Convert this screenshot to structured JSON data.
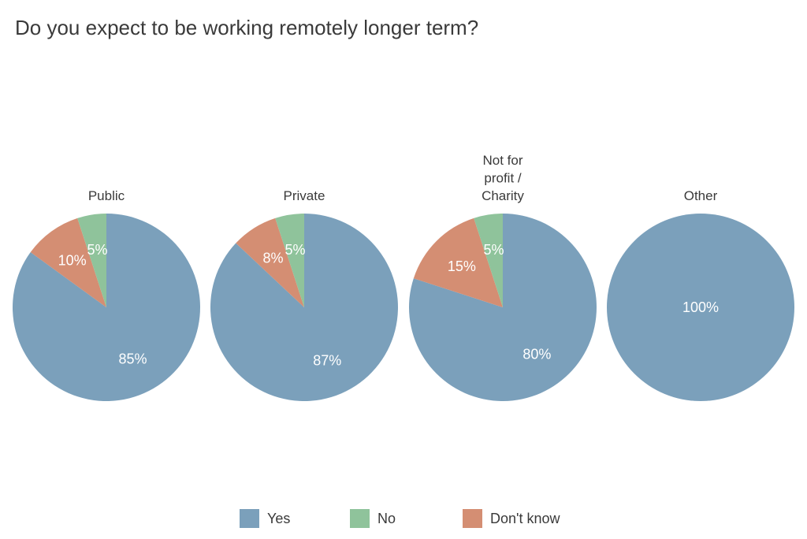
{
  "chart_data": {
    "type": "pie",
    "title": "Do you expect to be working remotely longer term?",
    "categories": [
      "Yes",
      "No",
      "Don't know"
    ],
    "colors": {
      "Yes": "#7ba0bb",
      "No": "#8fc39b",
      "Don't know": "#d48e73"
    },
    "legend_position": "bottom",
    "facets": [
      {
        "label": [
          "Public"
        ],
        "slices": [
          {
            "category": "Yes",
            "value": 85,
            "label": "85%"
          },
          {
            "category": "No",
            "value": 5,
            "label": "5%"
          },
          {
            "category": "Don't know",
            "value": 10,
            "label": "10%"
          }
        ]
      },
      {
        "label": [
          "Private"
        ],
        "slices": [
          {
            "category": "Yes",
            "value": 87,
            "label": "87%"
          },
          {
            "category": "No",
            "value": 5,
            "label": "5%"
          },
          {
            "category": "Don't know",
            "value": 8,
            "label": "8%"
          }
        ]
      },
      {
        "label": [
          "Not for",
          "profit /",
          "Charity"
        ],
        "slices": [
          {
            "category": "Yes",
            "value": 80,
            "label": "80%"
          },
          {
            "category": "No",
            "value": 5,
            "label": "5%"
          },
          {
            "category": "Don't know",
            "value": 15,
            "label": "15%"
          }
        ]
      },
      {
        "label": [
          "Other"
        ],
        "slices": [
          {
            "category": "Yes",
            "value": 100,
            "label": "100%"
          },
          {
            "category": "No",
            "value": 0,
            "label": ""
          },
          {
            "category": "Don't know",
            "value": 0,
            "label": ""
          }
        ]
      }
    ]
  }
}
